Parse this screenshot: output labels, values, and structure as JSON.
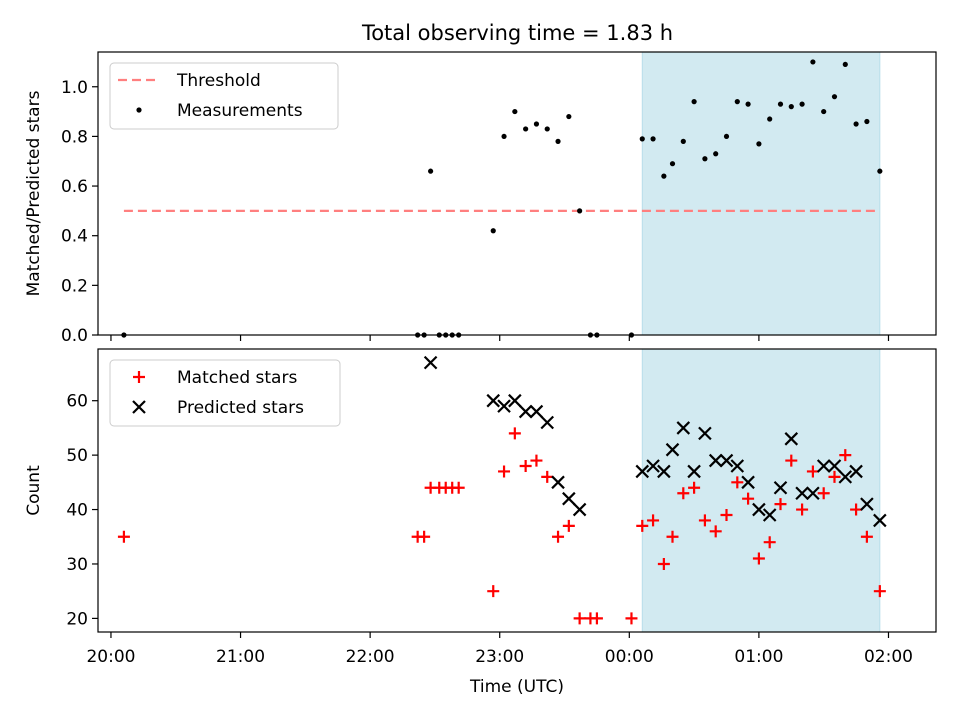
{
  "title": "Total observing time = 1.83 h",
  "chart_data": [
    {
      "type": "scatter",
      "ylabel": "Matched/Predicted stars",
      "xlabel": "",
      "xlim": [
        "19:54",
        "02:22"
      ],
      "ylim": [
        0,
        1.14
      ],
      "x_tick_labels": [
        "20:00",
        "21:00",
        "22:00",
        "23:00",
        "00:00",
        "01:00",
        "02:00"
      ],
      "y_ticks": [
        0.0,
        0.2,
        0.4,
        0.6,
        0.8,
        1.0
      ],
      "y_tick_labels": [
        "0.0",
        "0.2",
        "0.4",
        "0.6",
        "0.8",
        "1.0"
      ],
      "highlight_span": {
        "start": "00:06",
        "end": "01:56",
        "color": "#add8e6"
      },
      "legend": {
        "placement": "top-left",
        "entries": [
          "Threshold",
          "Measurements"
        ]
      },
      "threshold": {
        "name": "Threshold",
        "value": 0.5,
        "x_start": "20:06",
        "x_end": "01:56",
        "color": "#ff7f7f"
      },
      "series": [
        {
          "name": "Measurements",
          "color": "#000000",
          "points": [
            [
              "20:06",
              0
            ],
            [
              "22:22",
              0
            ],
            [
              "22:25",
              0
            ],
            [
              "22:28",
              0.66
            ],
            [
              "22:32",
              0
            ],
            [
              "22:35",
              0
            ],
            [
              "22:38",
              0
            ],
            [
              "22:41",
              0
            ],
            [
              "22:57",
              0.42
            ],
            [
              "23:02",
              0.8
            ],
            [
              "23:07",
              0.9
            ],
            [
              "23:12",
              0.83
            ],
            [
              "23:17",
              0.85
            ],
            [
              "23:22",
              0.83
            ],
            [
              "23:27",
              0.78
            ],
            [
              "23:32",
              0.88
            ],
            [
              "23:37",
              0.5
            ],
            [
              "23:42",
              0
            ],
            [
              "23:45",
              0
            ],
            [
              "00:01",
              0
            ],
            [
              "00:06",
              0.79
            ],
            [
              "00:11",
              0.79
            ],
            [
              "00:16",
              0.64
            ],
            [
              "00:20",
              0.69
            ],
            [
              "00:25",
              0.78
            ],
            [
              "00:30",
              0.94
            ],
            [
              "00:35",
              0.71
            ],
            [
              "00:40",
              0.73
            ],
            [
              "00:45",
              0.8
            ],
            [
              "00:50",
              0.94
            ],
            [
              "00:55",
              0.93
            ],
            [
              "01:00",
              0.77
            ],
            [
              "01:05",
              0.87
            ],
            [
              "01:10",
              0.93
            ],
            [
              "01:15",
              0.92
            ],
            [
              "01:20",
              0.93
            ],
            [
              "01:25",
              1.1
            ],
            [
              "01:30",
              0.9
            ],
            [
              "01:35",
              0.96
            ],
            [
              "01:40",
              1.09
            ],
            [
              "01:45",
              0.85
            ],
            [
              "01:50",
              0.86
            ],
            [
              "01:56",
              0.66
            ]
          ]
        }
      ]
    },
    {
      "type": "scatter",
      "ylabel": "Count",
      "xlabel": "Time (UTC)",
      "xlim": [
        "19:54",
        "02:22"
      ],
      "ylim": [
        17.5,
        69.5
      ],
      "x_tick_labels": [
        "20:00",
        "21:00",
        "22:00",
        "23:00",
        "00:00",
        "01:00",
        "02:00"
      ],
      "y_ticks": [
        20,
        30,
        40,
        50,
        60
      ],
      "y_tick_labels": [
        "20",
        "30",
        "40",
        "50",
        "60"
      ],
      "highlight_span": {
        "start": "00:06",
        "end": "01:56",
        "color": "#add8e6"
      },
      "legend": {
        "placement": "top-left",
        "entries": [
          "Matched stars",
          "Predicted stars"
        ]
      },
      "series": [
        {
          "name": "Matched stars",
          "marker": "plus",
          "color": "#ff0000",
          "points": [
            [
              "20:06",
              35
            ],
            [
              "22:22",
              35
            ],
            [
              "22:25",
              35
            ],
            [
              "22:28",
              44
            ],
            [
              "22:32",
              44
            ],
            [
              "22:35",
              44
            ],
            [
              "22:38",
              44
            ],
            [
              "22:41",
              44
            ],
            [
              "22:57",
              25
            ],
            [
              "23:02",
              47
            ],
            [
              "23:07",
              54
            ],
            [
              "23:12",
              48
            ],
            [
              "23:17",
              49
            ],
            [
              "23:22",
              46
            ],
            [
              "23:27",
              35
            ],
            [
              "23:32",
              37
            ],
            [
              "23:37",
              20
            ],
            [
              "23:42",
              20
            ],
            [
              "23:45",
              20
            ],
            [
              "00:01",
              20
            ],
            [
              "00:06",
              37
            ],
            [
              "00:11",
              38
            ],
            [
              "00:16",
              30
            ],
            [
              "00:20",
              35
            ],
            [
              "00:25",
              43
            ],
            [
              "00:30",
              44
            ],
            [
              "00:35",
              38
            ],
            [
              "00:40",
              36
            ],
            [
              "00:45",
              39
            ],
            [
              "00:50",
              45
            ],
            [
              "00:55",
              42
            ],
            [
              "01:00",
              31
            ],
            [
              "01:05",
              34
            ],
            [
              "01:10",
              41
            ],
            [
              "01:15",
              49
            ],
            [
              "01:20",
              40
            ],
            [
              "01:25",
              47
            ],
            [
              "01:30",
              43
            ],
            [
              "01:35",
              46
            ],
            [
              "01:40",
              50
            ],
            [
              "01:45",
              40
            ],
            [
              "01:50",
              35
            ],
            [
              "01:56",
              25
            ]
          ]
        },
        {
          "name": "Predicted stars",
          "marker": "x",
          "color": "#000000",
          "points": [
            [
              "22:28",
              67
            ],
            [
              "22:57",
              60
            ],
            [
              "23:02",
              59
            ],
            [
              "23:07",
              60
            ],
            [
              "23:12",
              58
            ],
            [
              "23:17",
              58
            ],
            [
              "23:22",
              56
            ],
            [
              "23:27",
              45
            ],
            [
              "23:32",
              42
            ],
            [
              "23:37",
              40
            ],
            [
              "00:06",
              47
            ],
            [
              "00:11",
              48
            ],
            [
              "00:16",
              47
            ],
            [
              "00:20",
              51
            ],
            [
              "00:25",
              55
            ],
            [
              "00:30",
              47
            ],
            [
              "00:35",
              54
            ],
            [
              "00:40",
              49
            ],
            [
              "00:45",
              49
            ],
            [
              "00:50",
              48
            ],
            [
              "00:55",
              45
            ],
            [
              "01:00",
              40
            ],
            [
              "01:05",
              39
            ],
            [
              "01:10",
              44
            ],
            [
              "01:15",
              53
            ],
            [
              "01:20",
              43
            ],
            [
              "01:25",
              43
            ],
            [
              "01:30",
              48
            ],
            [
              "01:35",
              48
            ],
            [
              "01:40",
              46
            ],
            [
              "01:45",
              47
            ],
            [
              "01:50",
              41
            ],
            [
              "01:56",
              38
            ]
          ]
        }
      ]
    }
  ]
}
